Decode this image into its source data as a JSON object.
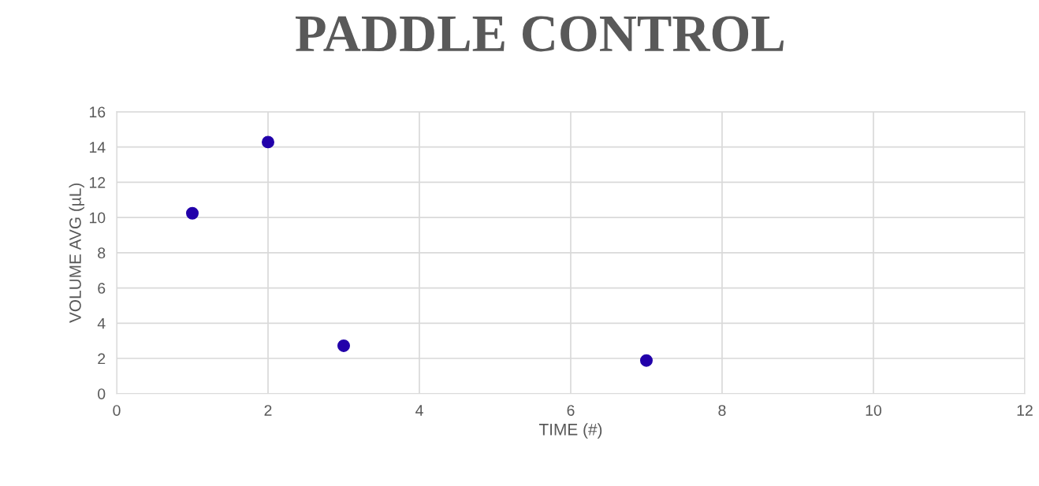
{
  "chart_data": {
    "type": "scatter",
    "title": "PADDLE CONTROL",
    "xlabel": "TIME (#)",
    "ylabel": "VOLUME AVG (µL)",
    "x": [
      1,
      2,
      3,
      7
    ],
    "series": [
      {
        "color": "#2200aa",
        "values": [
          10.24,
          14.28,
          2.72,
          1.88
        ]
      }
    ],
    "xlim": [
      0,
      12
    ],
    "xticks": [
      0,
      2,
      4,
      6,
      8,
      10,
      12
    ],
    "ylim": [
      0,
      16
    ],
    "yticks": [
      0,
      2,
      4,
      6,
      8,
      10,
      12,
      14,
      16
    ],
    "grid": true,
    "marker": "circle"
  }
}
